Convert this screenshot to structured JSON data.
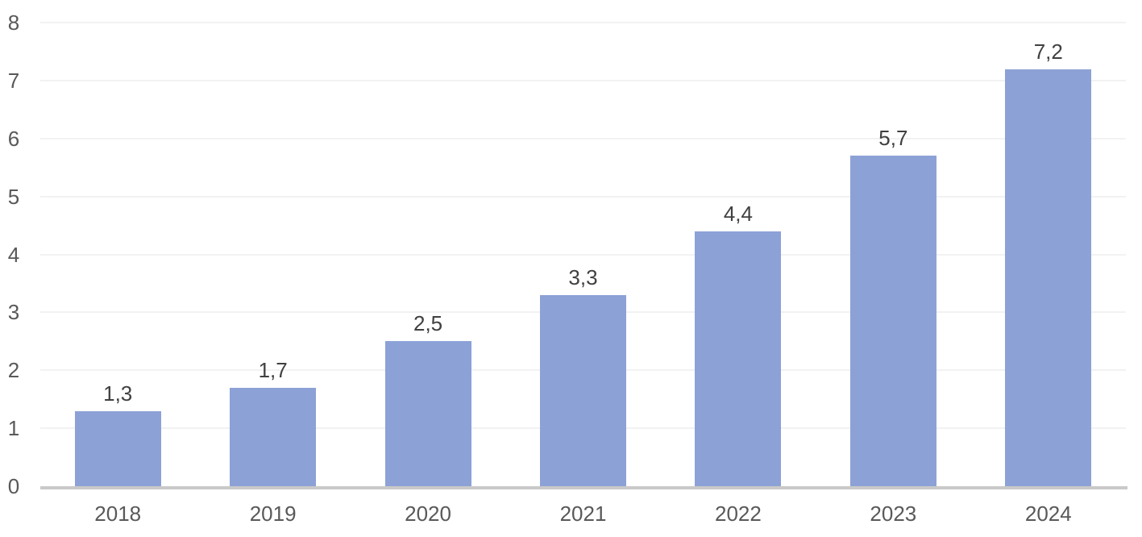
{
  "chart_data": {
    "type": "bar",
    "title": "",
    "xlabel": "",
    "ylabel": "",
    "categories": [
      "2018",
      "2019",
      "2020",
      "2021",
      "2022",
      "2023",
      "2024"
    ],
    "values": [
      1.3,
      1.7,
      2.5,
      3.3,
      4.4,
      5.7,
      7.2
    ],
    "value_labels": [
      "1,3",
      "1,7",
      "2,5",
      "3,3",
      "4,4",
      "5,7",
      "7,2"
    ],
    "ylim": [
      0,
      8
    ],
    "yticks": [
      0,
      1,
      2,
      3,
      4,
      5,
      6,
      7,
      8
    ],
    "grid": true,
    "legend": "none",
    "colors": {
      "bar": "#8CA1D6",
      "gridline": "#F2F2F2",
      "axis_line": "#C9C9C9",
      "tick_label": "#595959",
      "data_label": "#404040",
      "background": "#FFFFFF"
    }
  }
}
